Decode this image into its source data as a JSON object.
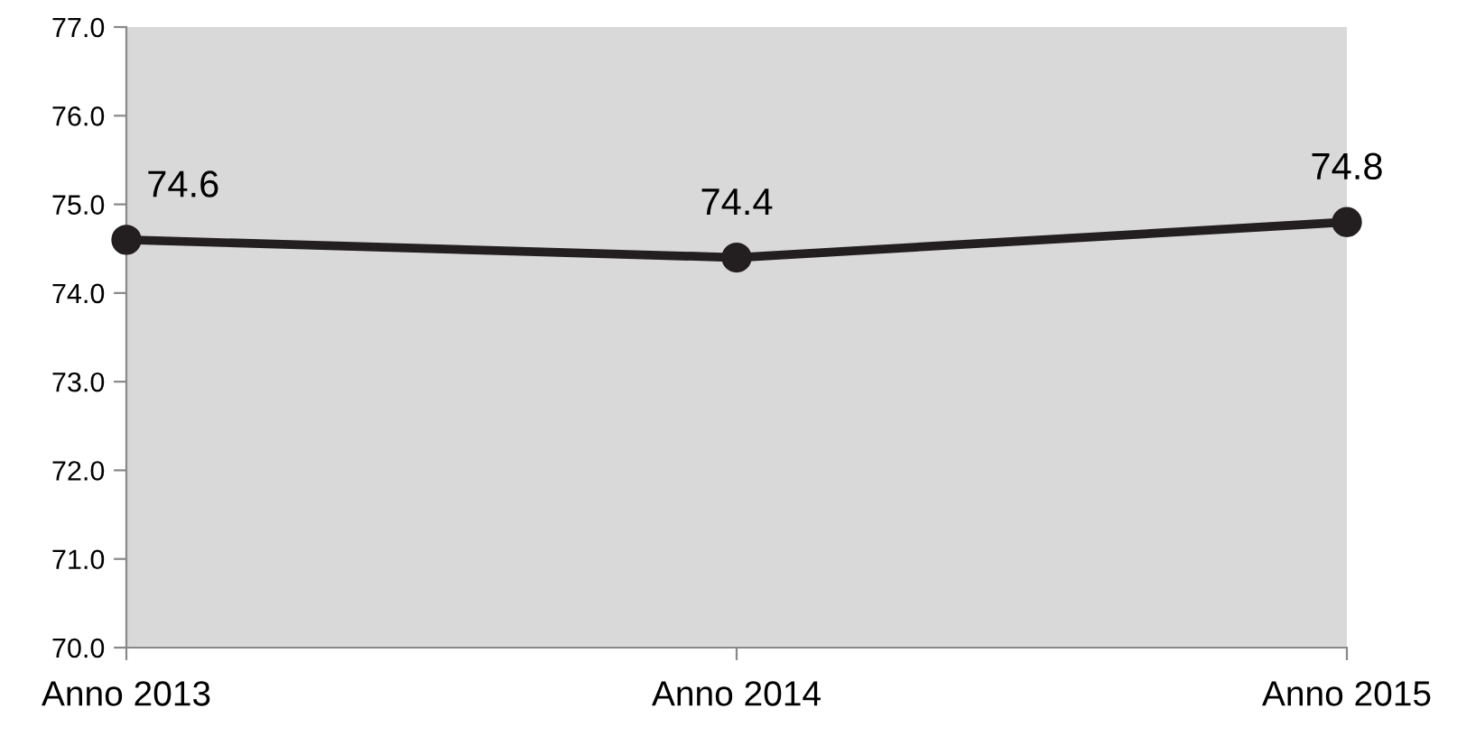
{
  "chart_data": {
    "type": "line",
    "categories": [
      "Anno 2013",
      "Anno 2014",
      "Anno 2015"
    ],
    "series": [
      {
        "color": "#231f20",
        "values": [
          74.6,
          74.4,
          74.8
        ]
      }
    ],
    "ylim": [
      70,
      77
    ],
    "yticks": [
      {
        "value": 70,
        "label": "70.0"
      },
      {
        "value": 71,
        "label": "71.0"
      },
      {
        "value": 72,
        "label": "72.0"
      },
      {
        "value": 73,
        "label": "73.0"
      },
      {
        "value": 74,
        "label": "74.0"
      },
      {
        "value": 75,
        "label": "75.0"
      },
      {
        "value": 76,
        "label": "76.0"
      },
      {
        "value": 77,
        "label": "77.0"
      }
    ],
    "grid": false,
    "legend": false,
    "marker": "circle",
    "line_style": "solid",
    "data_labels": true
  }
}
